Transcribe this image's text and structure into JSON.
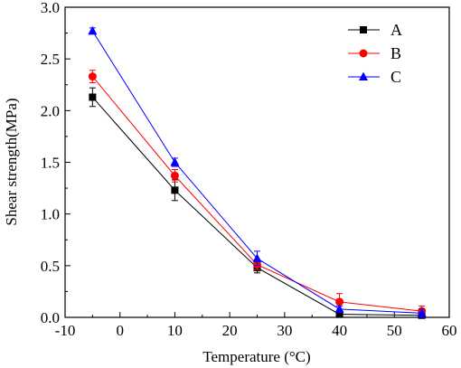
{
  "chart_data": {
    "type": "line",
    "title": "",
    "xlabel": "Temperature (°C)",
    "ylabel": "Shear strength(MPa)",
    "xlim": [
      -10,
      60
    ],
    "ylim": [
      0.0,
      3.0
    ],
    "xticks": [
      "-10",
      "0",
      "10",
      "20",
      "30",
      "40",
      "50",
      "60"
    ],
    "yticks": [
      "0.0",
      "0.5",
      "1.0",
      "1.5",
      "2.0",
      "2.5",
      "3.0"
    ],
    "grid": false,
    "legend_position": "top-right",
    "x": [
      -5,
      10,
      25,
      40,
      55
    ],
    "series": [
      {
        "name": "A",
        "color": "#000000",
        "marker": "square",
        "values": [
          2.13,
          1.23,
          0.48,
          0.03,
          0.02
        ],
        "errors": [
          0.09,
          0.1,
          0.05,
          0.03,
          0.03
        ]
      },
      {
        "name": "B",
        "color": "#ff0000",
        "marker": "circle",
        "values": [
          2.33,
          1.37,
          0.51,
          0.15,
          0.06
        ],
        "errors": [
          0.06,
          0.06,
          0.05,
          0.08,
          0.05
        ]
      },
      {
        "name": "C",
        "color": "#0000ff",
        "marker": "triangle",
        "values": [
          2.77,
          1.5,
          0.57,
          0.08,
          0.04
        ],
        "errors": [
          0.03,
          0.04,
          0.07,
          0.03,
          0.04
        ]
      }
    ]
  }
}
